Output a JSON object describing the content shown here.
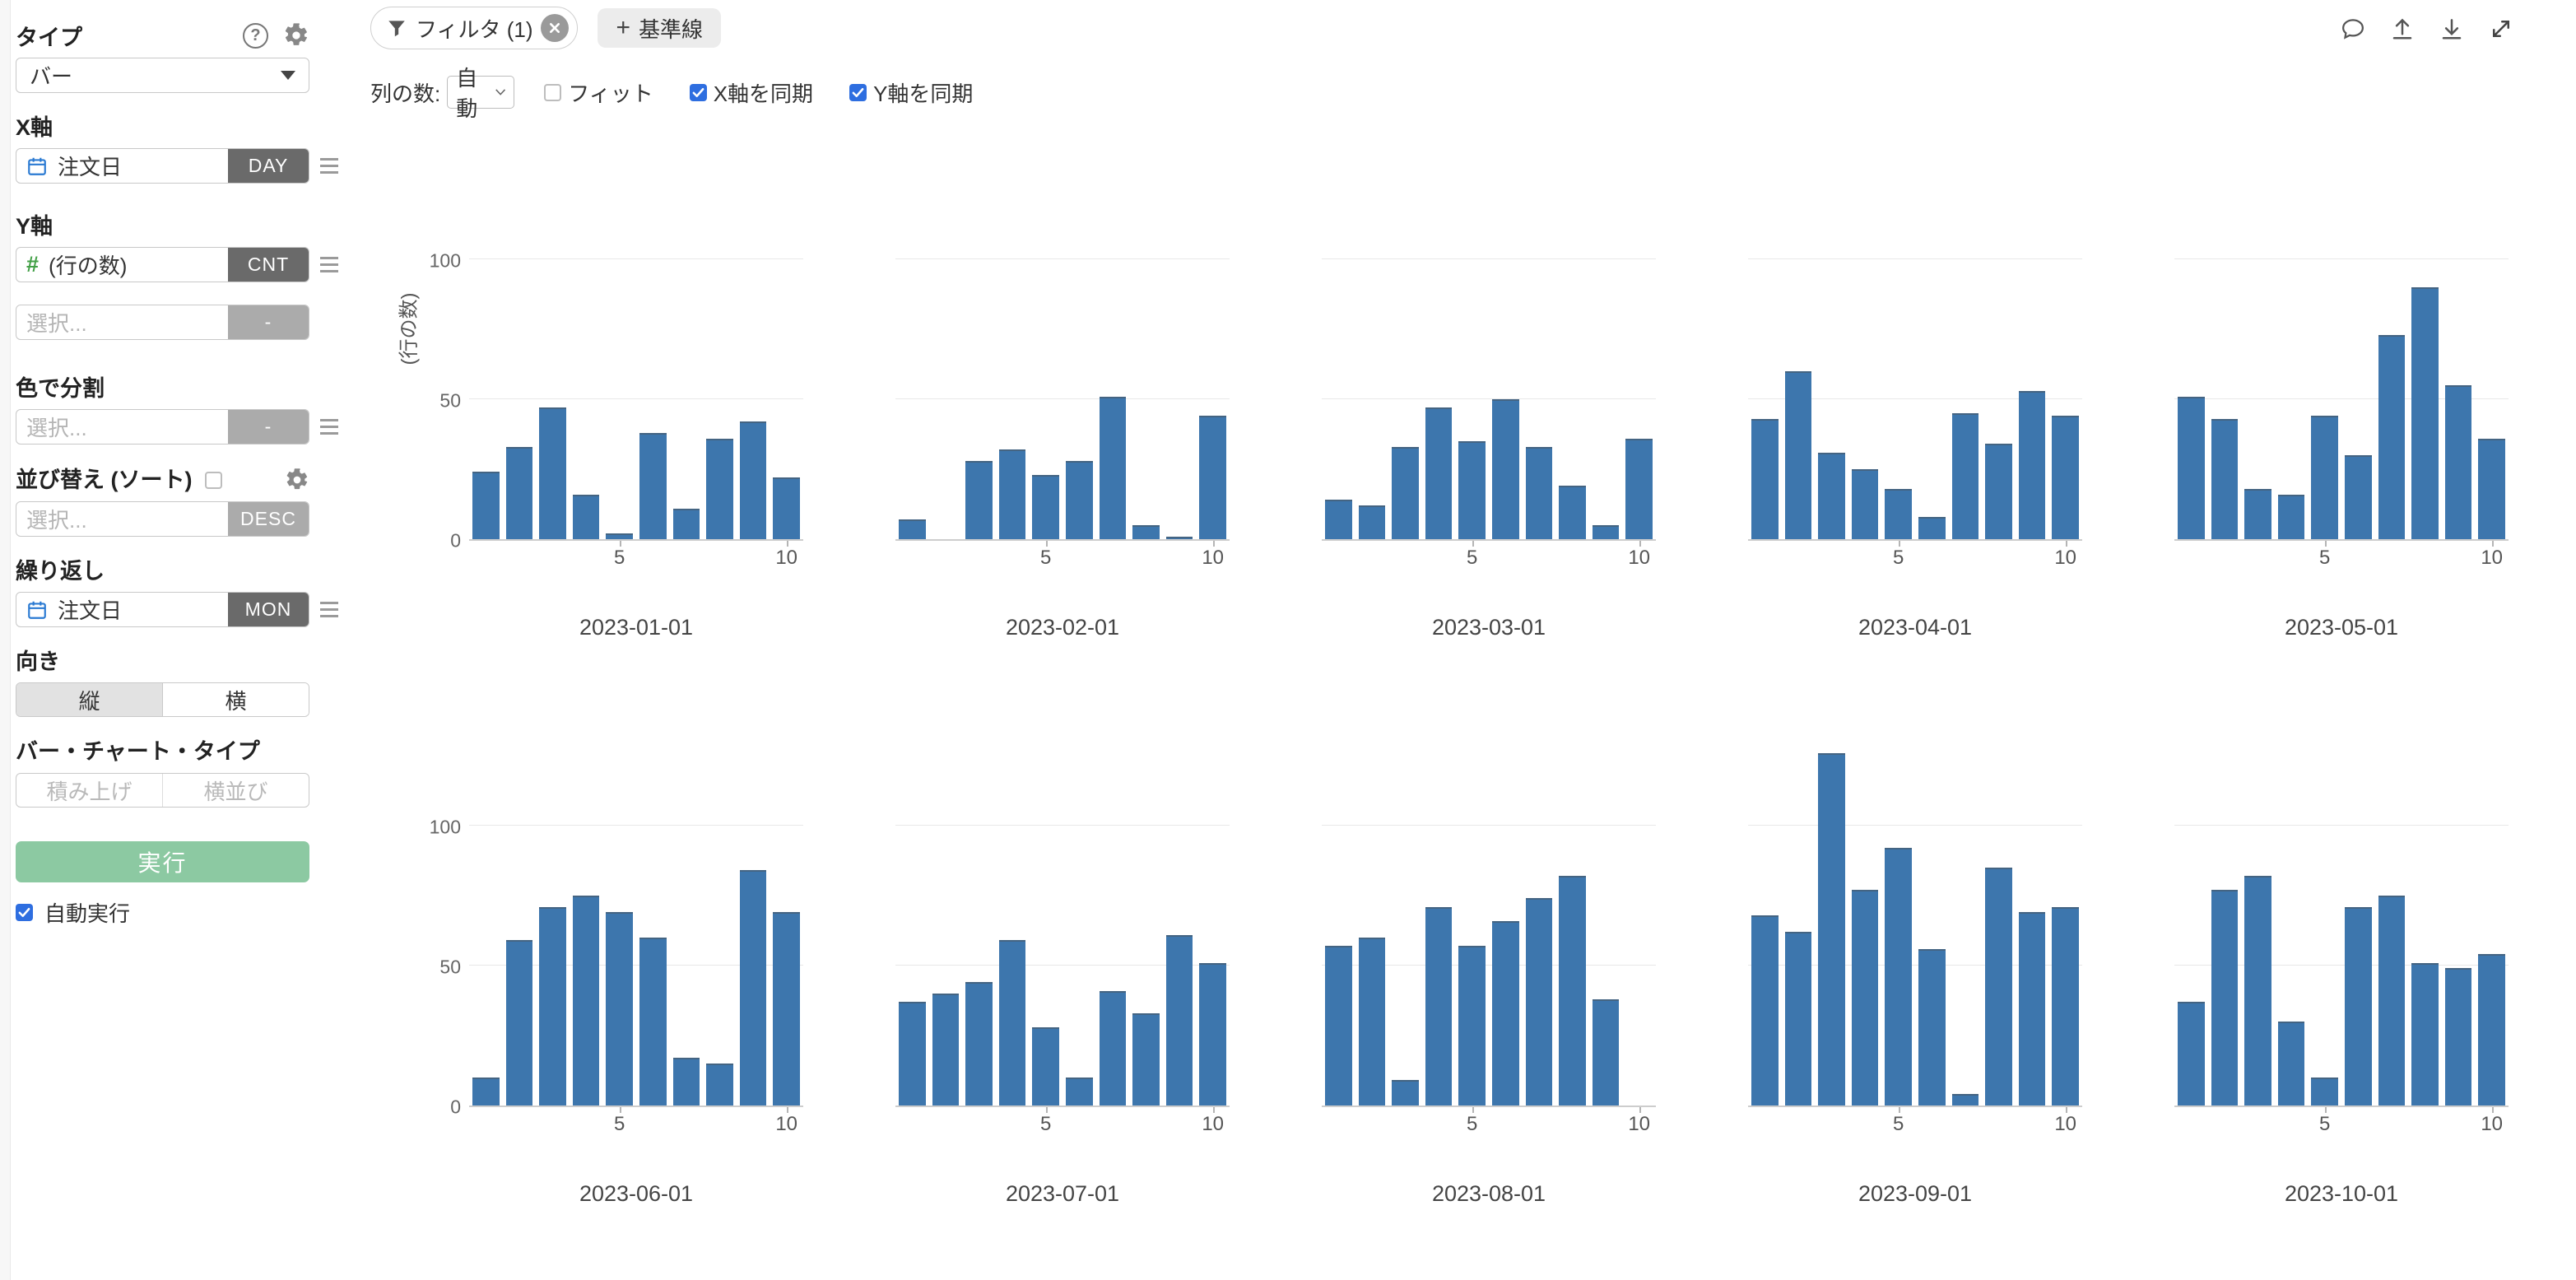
{
  "colors": {
    "bar": "#3d76ad",
    "accent_blue": "#2e6ee0",
    "run_green": "#8cc9a2",
    "avatar_green": "#2fa26e"
  },
  "sidebar": {
    "title": "タイプ",
    "type_select": {
      "value": "バー"
    },
    "x_axis": {
      "label": "X軸",
      "field": "注文日",
      "badge": "DAY"
    },
    "y_axis": {
      "label": "Y軸",
      "field": "(行の数)",
      "badge": "CNT"
    },
    "y_axis_extra": {
      "placeholder": "選択...",
      "badge": "-"
    },
    "color_split": {
      "label": "色で分割",
      "placeholder": "選択...",
      "badge": "-"
    },
    "sort": {
      "label": "並び替え (ソート)",
      "placeholder": "選択...",
      "badge": "DESC"
    },
    "repeat": {
      "label": "繰り返し",
      "field": "注文日",
      "badge": "MON"
    },
    "orientation": {
      "label": "向き",
      "vertical": "縦",
      "horizontal": "横",
      "selected": "縦"
    },
    "bar_chart_type": {
      "label": "バー・チャート・タイプ",
      "stacked": "積み上げ",
      "side_by_side": "横並び"
    },
    "run_label": "実行",
    "autorun_label": "自動実行"
  },
  "toolbar": {
    "filter_label": "フィルタ (1)",
    "plus": "+",
    "baseline_label": "基準線",
    "columns_label": "列の数:",
    "columns_value": "自動",
    "fit_label": "フィット",
    "sync_x_label": "X軸を同期",
    "sync_y_label": "Y軸を同期",
    "fit_checked": false,
    "sync_x_checked": true,
    "sync_y_checked": true
  },
  "chart_data": {
    "type": "bar",
    "ylabel": "(行の数)",
    "yticks": [
      0,
      50,
      100
    ],
    "xticks": [
      5,
      10
    ],
    "x": [
      1,
      2,
      3,
      4,
      5,
      6,
      7,
      8,
      9,
      10
    ],
    "ylim": [
      0,
      105
    ],
    "grid": "horizontal",
    "panels": [
      {
        "title": "2023-01-01",
        "values": [
          24,
          33,
          47,
          16,
          2,
          38,
          11,
          36,
          42,
          22
        ]
      },
      {
        "title": "2023-02-01",
        "values": [
          7,
          0,
          28,
          32,
          23,
          28,
          51,
          5,
          1,
          44
        ]
      },
      {
        "title": "2023-03-01",
        "values": [
          14,
          12,
          33,
          47,
          35,
          50,
          33,
          19,
          5,
          36
        ]
      },
      {
        "title": "2023-04-01",
        "values": [
          43,
          60,
          31,
          25,
          18,
          8,
          45,
          34,
          53,
          44
        ]
      },
      {
        "title": "2023-05-01",
        "values": [
          51,
          43,
          18,
          16,
          44,
          30,
          73,
          90,
          55,
          36
        ]
      },
      {
        "title": "2023-06-01",
        "values": [
          10,
          59,
          71,
          75,
          69,
          60,
          17,
          15,
          84,
          69
        ]
      },
      {
        "title": "2023-07-01",
        "values": [
          37,
          40,
          44,
          59,
          28,
          10,
          41,
          33,
          61,
          51
        ]
      },
      {
        "title": "2023-08-01",
        "values": [
          57,
          60,
          9,
          71,
          57,
          66,
          74,
          82,
          38,
          0
        ]
      },
      {
        "title": "2023-09-01",
        "values": [
          68,
          62,
          126,
          77,
          92,
          56,
          4,
          85,
          69,
          71
        ]
      },
      {
        "title": "2023-10-01",
        "values": [
          37,
          77,
          82,
          30,
          10,
          71,
          75,
          51,
          49,
          54
        ]
      }
    ]
  }
}
